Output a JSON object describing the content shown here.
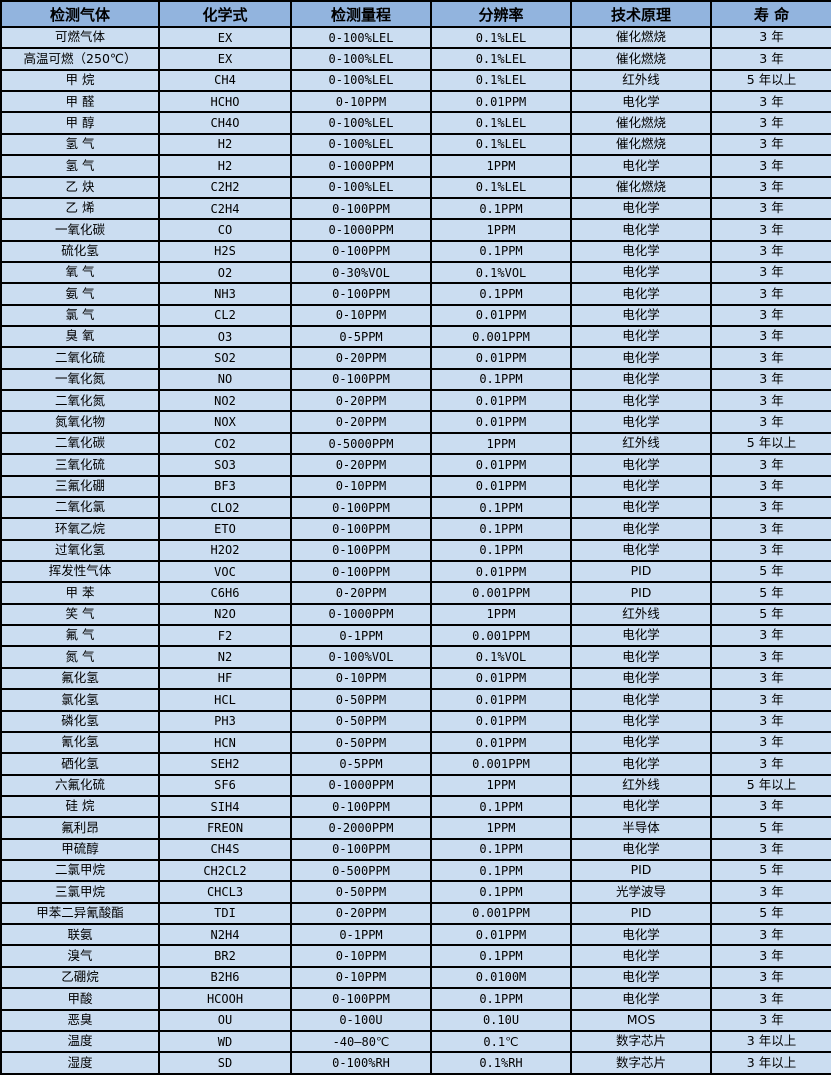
{
  "colors": {
    "header_bg": "#92b4de",
    "row_bg": "#cbddf1",
    "border": "#000000"
  },
  "table": {
    "headers": [
      "检测气体",
      "化学式",
      "检测量程",
      "分辨率",
      "技术原理",
      "寿 命"
    ],
    "column_keys": [
      "gas",
      "formula",
      "range",
      "resolution",
      "principle",
      "lifespan"
    ],
    "rows": [
      [
        "可燃气体",
        "EX",
        "0-100%LEL",
        "0.1%LEL",
        "催化燃烧",
        "3 年"
      ],
      [
        "高温可燃（250℃）",
        "EX",
        "0-100%LEL",
        "0.1%LEL",
        "催化燃烧",
        "3 年"
      ],
      [
        "甲 烷",
        "CH4",
        "0-100%LEL",
        "0.1%LEL",
        "红外线",
        "5 年以上"
      ],
      [
        "甲 醛",
        "HCHO",
        "0-10PPM",
        "0.01PPM",
        "电化学",
        "3 年"
      ],
      [
        "甲 醇",
        "CH4O",
        "0-100%LEL",
        "0.1%LEL",
        "催化燃烧",
        "3 年"
      ],
      [
        "氢 气",
        "H2",
        "0-100%LEL",
        "0.1%LEL",
        "催化燃烧",
        "3 年"
      ],
      [
        "氢 气",
        "H2",
        "0-1000PPM",
        "1PPM",
        "电化学",
        "3 年"
      ],
      [
        "乙 炔",
        "C2H2",
        "0-100%LEL",
        "0.1%LEL",
        "催化燃烧",
        "3 年"
      ],
      [
        "乙 烯",
        "C2H4",
        "0-100PPM",
        "0.1PPM",
        "电化学",
        "3 年"
      ],
      [
        "一氧化碳",
        "CO",
        "0-1000PPM",
        "1PPM",
        "电化学",
        "3 年"
      ],
      [
        "硫化氢",
        "H2S",
        "0-100PPM",
        "0.1PPM",
        "电化学",
        "3 年"
      ],
      [
        "氧 气",
        "O2",
        "0-30%VOL",
        "0.1%VOL",
        "电化学",
        "3 年"
      ],
      [
        "氨 气",
        "NH3",
        "0-100PPM",
        "0.1PPM",
        "电化学",
        "3 年"
      ],
      [
        "氯 气",
        "CL2",
        "0-10PPM",
        "0.01PPM",
        "电化学",
        "3 年"
      ],
      [
        "臭 氧",
        "O3",
        "0-5PPM",
        "0.001PPM",
        "电化学",
        "3 年"
      ],
      [
        "二氧化硫",
        "SO2",
        "0-20PPM",
        "0.01PPM",
        "电化学",
        "3 年"
      ],
      [
        "一氧化氮",
        "NO",
        "0-100PPM",
        "0.1PPM",
        "电化学",
        "3 年"
      ],
      [
        "二氧化氮",
        "NO2",
        "0-20PPM",
        "0.01PPM",
        "电化学",
        "3 年"
      ],
      [
        "氮氧化物",
        "NOX",
        "0-20PPM",
        "0.01PPM",
        "电化学",
        "3 年"
      ],
      [
        "二氧化碳",
        "CO2",
        "0-5000PPM",
        "1PPM",
        "红外线",
        "5 年以上"
      ],
      [
        "三氧化硫",
        "SO3",
        "0-20PPM",
        "0.01PPM",
        "电化学",
        "3 年"
      ],
      [
        "三氟化硼",
        "BF3",
        "0-10PPM",
        "0.01PPM",
        "电化学",
        "3 年"
      ],
      [
        "二氧化氯",
        "CLO2",
        "0-100PPM",
        "0.1PPM",
        "电化学",
        "3 年"
      ],
      [
        "环氧乙烷",
        "ETO",
        "0-100PPM",
        "0.1PPM",
        "电化学",
        "3 年"
      ],
      [
        "过氧化氢",
        "H2O2",
        "0-100PPM",
        "0.1PPM",
        "电化学",
        "3 年"
      ],
      [
        "挥发性气体",
        "VOC",
        "0-100PPM",
        "0.01PPM",
        "PID",
        "5 年"
      ],
      [
        "甲 苯",
        "C6H6",
        "0-20PPM",
        "0.001PPM",
        "PID",
        "5 年"
      ],
      [
        "笑 气",
        "N2O",
        "0-1000PPM",
        "1PPM",
        "红外线",
        "5 年"
      ],
      [
        "氟 气",
        "F2",
        "0-1PPM",
        "0.001PPM",
        "电化学",
        "3 年"
      ],
      [
        "氮 气",
        "N2",
        "0-100%VOL",
        "0.1%VOL",
        "电化学",
        "3 年"
      ],
      [
        "氟化氢",
        "HF",
        "0-10PPM",
        "0.01PPM",
        "电化学",
        "3 年"
      ],
      [
        "氯化氢",
        "HCL",
        "0-50PPM",
        "0.01PPM",
        "电化学",
        "3 年"
      ],
      [
        "磷化氢",
        "PH3",
        "0-50PPM",
        "0.01PPM",
        "电化学",
        "3 年"
      ],
      [
        "氰化氢",
        "HCN",
        "0-50PPM",
        "0.01PPM",
        "电化学",
        "3 年"
      ],
      [
        "硒化氢",
        "SEH2",
        "0-5PPM",
        "0.001PPM",
        "电化学",
        "3 年"
      ],
      [
        "六氟化硫",
        "SF6",
        "0-1000PPM",
        "1PPM",
        "红外线",
        "5 年以上"
      ],
      [
        "硅 烷",
        "SIH4",
        "0-100PPM",
        "0.1PPM",
        "电化学",
        "3 年"
      ],
      [
        "氟利昂",
        "FREON",
        "0-2000PPM",
        "1PPM",
        "半导体",
        "5 年"
      ],
      [
        "甲硫醇",
        "CH4S",
        "0-100PPM",
        "0.1PPM",
        "电化学",
        "3 年"
      ],
      [
        "二氯甲烷",
        "CH2CL2",
        "0-500PPM",
        "0.1PPM",
        "PID",
        "5 年"
      ],
      [
        "三氯甲烷",
        "CHCL3",
        "0-50PPM",
        "0.1PPM",
        "光学波导",
        "3 年"
      ],
      [
        "甲苯二异氰酸酯",
        "TDI",
        "0-20PPM",
        "0.001PPM",
        "PID",
        "5 年"
      ],
      [
        "联氨",
        "N2H4",
        "0-1PPM",
        "0.01PPM",
        "电化学",
        "3 年"
      ],
      [
        "溴气",
        "BR2",
        "0-10PPM",
        "0.1PPM",
        "电化学",
        "3 年"
      ],
      [
        "乙硼烷",
        "B2H6",
        "0-10PPM",
        "0.0100M",
        "电化学",
        "3 年"
      ],
      [
        "甲酸",
        "HCOOH",
        "0-100PPM",
        "0.1PPM",
        "电化学",
        "3 年"
      ],
      [
        "恶臭",
        "OU",
        "0-100U",
        "0.10U",
        "MOS",
        "3 年"
      ],
      [
        "温度",
        "WD",
        "-40—80℃",
        "0.1℃",
        "数字芯片",
        "3 年以上"
      ],
      [
        "湿度",
        "SD",
        "0-100%RH",
        "0.1%RH",
        "数字芯片",
        "3 年以上"
      ]
    ]
  }
}
